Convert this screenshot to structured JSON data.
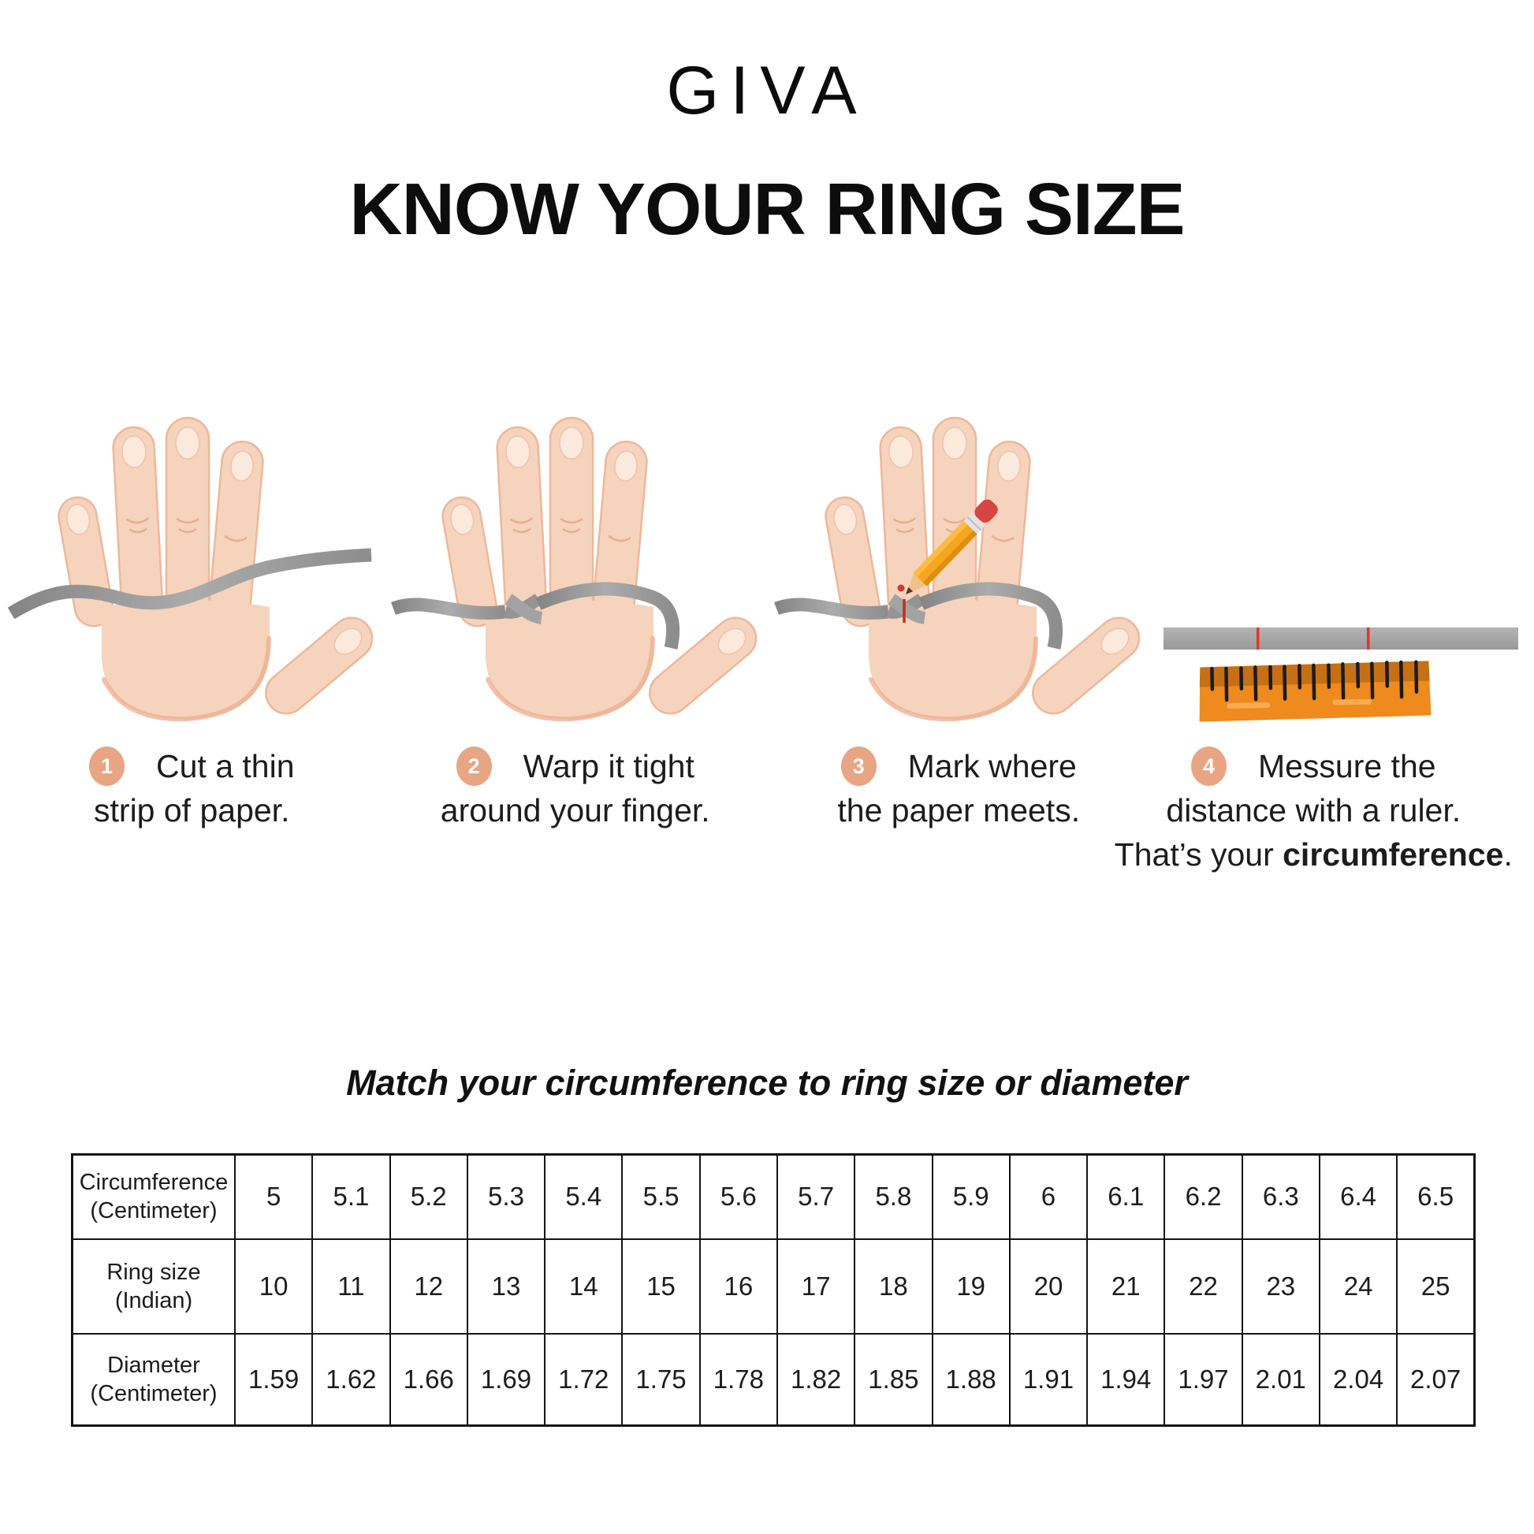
{
  "brand": {
    "logo_text": "GIVA"
  },
  "page_title": "KNOW YOUR RING SIZE",
  "steps": [
    {
      "num": "1",
      "icon": "hand-with-paper-strip",
      "line1": "Cut a thin",
      "line2": "strip of paper."
    },
    {
      "num": "2",
      "icon": "hand-strip-wrapped-around-finger",
      "line1": "Warp it tight",
      "line2": "around your finger."
    },
    {
      "num": "3",
      "icon": "hand-pencil-marking-strip",
      "line1": "Mark where",
      "line2": "the paper meets."
    },
    {
      "num": "4",
      "icon": "paper-strip-and-ruler",
      "line1": "Messure the",
      "line2": "distance with a ruler.",
      "line3_prefix": "That’s your ",
      "line3_bold": "circumference",
      "line3_suffix": "."
    }
  ],
  "table": {
    "heading": "Match your circumference to ring size or diameter",
    "rows": [
      {
        "label_lines": [
          "Circumference",
          "(Centimeter)"
        ],
        "values": [
          "5",
          "5.1",
          "5.2",
          "5.3",
          "5.4",
          "5.5",
          "5.6",
          "5.7",
          "5.8",
          "5.9",
          "6",
          "6.1",
          "6.2",
          "6.3",
          "6.4",
          "6.5"
        ]
      },
      {
        "label_lines": [
          "Ring size",
          "(Indian)"
        ],
        "values": [
          "10",
          "11",
          "12",
          "13",
          "14",
          "15",
          "16",
          "17",
          "18",
          "19",
          "20",
          "21",
          "22",
          "23",
          "24",
          "25"
        ]
      },
      {
        "label_lines": [
          "Diameter",
          "(Centimeter)"
        ],
        "values": [
          "1.59",
          "1.62",
          "1.66",
          "1.69",
          "1.72",
          "1.75",
          "1.78",
          "1.82",
          "1.85",
          "1.88",
          "1.91",
          "1.94",
          "1.97",
          "2.01",
          "2.04",
          "2.07"
        ]
      }
    ]
  },
  "colors": {
    "badge": "#E8A584",
    "skin": "#F6D3BC",
    "paper_strip_gray": "#9B9B9B",
    "ruler_orange": "#EE8A1E",
    "ruler_dark_band": "#C66F15",
    "mark_red": "#D8392B",
    "pencil_yellow": "#F6A51F",
    "eraser_red": "#D64541"
  }
}
